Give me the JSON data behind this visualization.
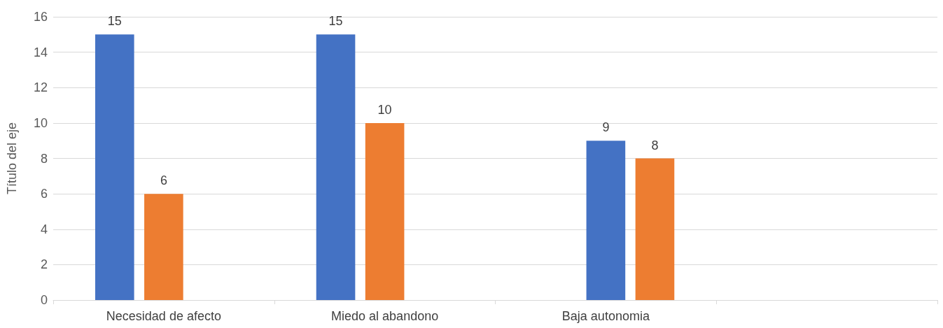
{
  "chart_data": {
    "type": "bar",
    "ylabel": "Título del eje",
    "categories": [
      "Necesidad de afecto",
      "Miedo al abandono",
      "Baja autonomia",
      null
    ],
    "series": [
      {
        "color": "#4472c4",
        "values": [
          15,
          15,
          null,
          null
        ]
      },
      {
        "color": "#ed7d31",
        "colors": [
          "#ed7d31",
          "#ed7d31",
          "#4472c4",
          null
        ],
        "values": [
          6,
          10,
          9,
          null
        ]
      },
      {
        "color": "#ed7d31",
        "values": [
          null,
          null,
          8,
          null
        ]
      }
    ],
    "ylim": [
      0,
      16
    ],
    "yticks": [
      0,
      2,
      4,
      6,
      8,
      10,
      12,
      14,
      16
    ],
    "grid": "y",
    "data_labels": true
  }
}
